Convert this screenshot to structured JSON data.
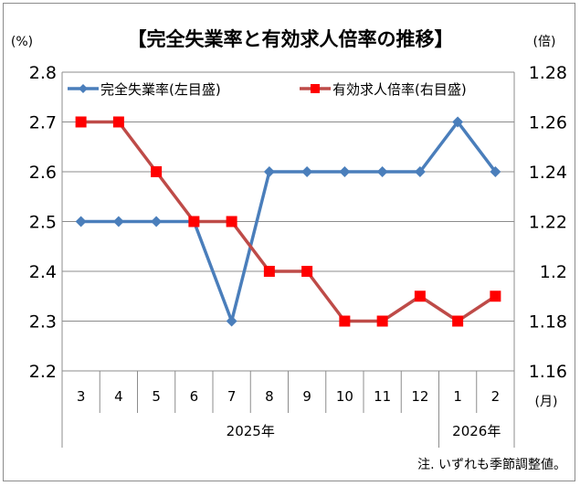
{
  "chart_data": {
    "type": "line",
    "title": "【完全失業率と有効求人倍率の推移】",
    "left_unit": "(%)",
    "right_unit": "(倍)",
    "month_unit": "(月)",
    "note": "注. いずれも季節調整値。",
    "categories": [
      "3",
      "4",
      "5",
      "6",
      "7",
      "8",
      "9",
      "10",
      "11",
      "12",
      "1",
      "2"
    ],
    "years": [
      {
        "label": "2025年",
        "span": [
          0,
          9
        ]
      },
      {
        "label": "2026年",
        "span": [
          10,
          11
        ]
      }
    ],
    "left_axis": {
      "min": 2.2,
      "max": 2.8,
      "ticks": [
        "2.2",
        "2.3",
        "2.4",
        "2.5",
        "2.6",
        "2.7",
        "2.8"
      ]
    },
    "right_axis": {
      "min": 1.16,
      "max": 1.28,
      "ticks": [
        "1.16",
        "1.18",
        "1.2",
        "1.22",
        "1.24",
        "1.26",
        "1.28"
      ]
    },
    "grid": true,
    "legend": "top",
    "series": [
      {
        "name": "完全失業率(左目盛)",
        "axis": "left",
        "color": "#4a7ebb",
        "marker": "diamond",
        "values": [
          2.5,
          2.5,
          2.5,
          2.5,
          2.3,
          2.6,
          2.6,
          2.6,
          2.6,
          2.6,
          2.7,
          2.6
        ]
      },
      {
        "name": "有効求人倍率(右目盛)",
        "axis": "right",
        "color": "#be4b48",
        "marker_color": "#ff0000",
        "marker": "square",
        "values": [
          1.26,
          1.26,
          1.24,
          1.22,
          1.22,
          1.2,
          1.2,
          1.18,
          1.18,
          1.19,
          1.18,
          1.19
        ]
      }
    ]
  }
}
